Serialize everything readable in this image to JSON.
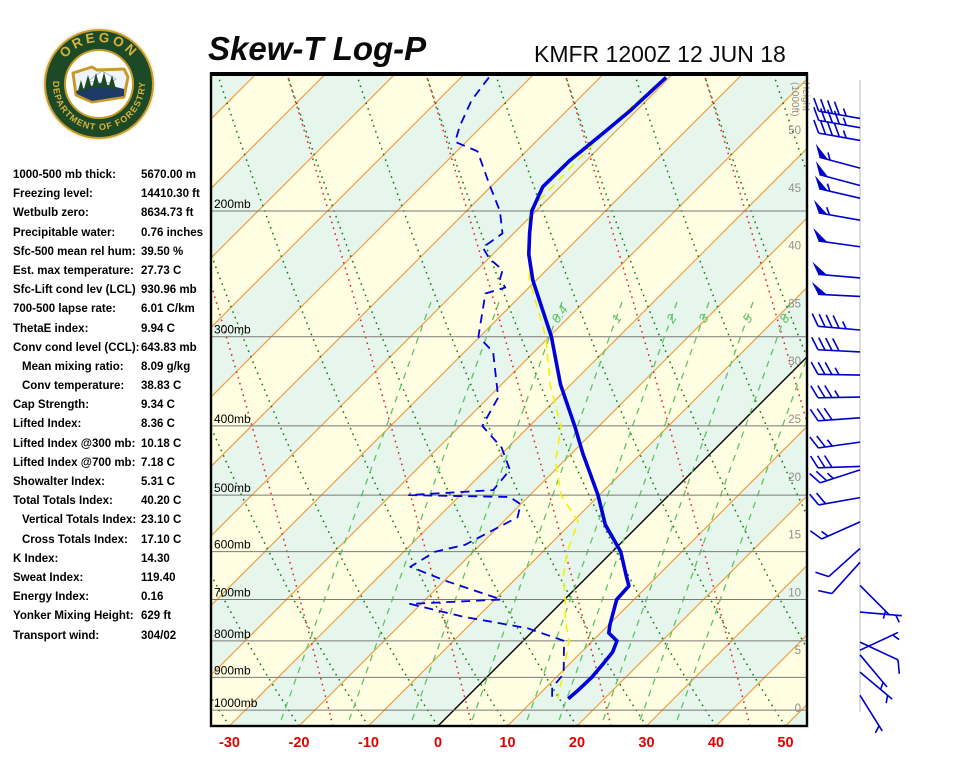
{
  "header": {
    "title": "Skew-T Log-P",
    "station_line": "KMFR 1200Z 12 JUN 18",
    "logo": {
      "top_text": "OREGON",
      "bottom_text": "DEPARTMENT OF FORESTRY"
    }
  },
  "stats": [
    {
      "label": "1000-500 mb thick:",
      "value": "5670.00 m",
      "indent": false
    },
    {
      "label": "Freezing level:",
      "value": "14410.30 ft",
      "indent": false
    },
    {
      "label": "Wetbulb zero:",
      "value": "8634.73 ft",
      "indent": false
    },
    {
      "label": "Precipitable water:",
      "value": "0.76 inches",
      "indent": false
    },
    {
      "label": "Sfc-500 mean rel hum:",
      "value": "39.50 %",
      "indent": false
    },
    {
      "label": "Est. max temperature:",
      "value": "27.73 C",
      "indent": false
    },
    {
      "label": "Sfc-Lift cond lev (LCL)",
      "value": "930.96 mb",
      "indent": false
    },
    {
      "label": "700-500 lapse rate:",
      "value": "6.01 C/km",
      "indent": false
    },
    {
      "label": "ThetaE index:",
      "value": "9.94 C",
      "indent": false
    },
    {
      "label": "Conv cond level (CCL):",
      "value": "643.83 mb",
      "indent": false
    },
    {
      "label": "Mean mixing ratio:",
      "value": "8.09 g/kg",
      "indent": true
    },
    {
      "label": "Conv temperature:",
      "value": "38.83 C",
      "indent": true
    },
    {
      "label": "Cap Strength:",
      "value": "9.34 C",
      "indent": false
    },
    {
      "label": "Lifted Index:",
      "value": "8.36 C",
      "indent": false
    },
    {
      "label": "Lifted Index @300 mb:",
      "value": "10.18 C",
      "indent": false
    },
    {
      "label": "Lifted Index @700 mb:",
      "value": "7.18 C",
      "indent": false
    },
    {
      "label": "Showalter Index:",
      "value": "5.31 C",
      "indent": false
    },
    {
      "label": "Total Totals Index:",
      "value": "40.20 C",
      "indent": false
    },
    {
      "label": "Vertical Totals Index:",
      "value": "23.10 C",
      "indent": true
    },
    {
      "label": "Cross Totals Index:",
      "value": "17.10 C",
      "indent": true
    },
    {
      "label": "K Index:",
      "value": "14.30",
      "indent": false
    },
    {
      "label": "Sweat Index:",
      "value": "119.40",
      "indent": false
    },
    {
      "label": "Energy Index:",
      "value": "0.16",
      "indent": false
    },
    {
      "label": "Yonker Mixing Height:",
      "value": "629 ft",
      "indent": false
    },
    {
      "label": "Transport wind:",
      "value": "304/02",
      "indent": false
    }
  ],
  "colors": {
    "band_yellow": "#fffee2",
    "band_green": "#e6f6ec",
    "isotherm_orange": "#f0a044",
    "zero_isotherm": "#000000",
    "dry_adiabat_green": "#0b7d0b",
    "moist_adiabat_red": "#e02020",
    "mixing_ratio_green": "#5ec464",
    "pressure_line_gray": "#7a7a7a",
    "height_label_gray": "#8f8f8f",
    "trace_blue": "#0000dd",
    "wetbulb_yellow": "#f2f200",
    "axis_label_red": "#e60000",
    "barb_blue": "#0000cc",
    "frame_black": "#000000"
  },
  "chart_data": {
    "type": "line",
    "subtype": "skew-t-log-p-sounding",
    "title": "Skew-T Log-P",
    "station": "KMFR",
    "valid_time": "1200Z 12 JUN 18",
    "pressure_axis": {
      "unit": "mb",
      "labels": [
        "200mb",
        "300mb",
        "400mb",
        "500mb",
        "600mb",
        "700mb",
        "800mb",
        "900mb",
        "1000mb"
      ],
      "values": [
        200,
        300,
        400,
        500,
        600,
        700,
        800,
        900,
        1000
      ],
      "scale": "log",
      "top_mb": 130,
      "bottom_mb": 1055
    },
    "temp_axis": {
      "unit": "C",
      "ticks": [
        -30,
        -20,
        -10,
        0,
        10,
        20,
        30,
        40,
        50
      ],
      "skew_deg": 45
    },
    "height_axis": {
      "title": "Height (1000ft)",
      "ticks": [
        50,
        45,
        40,
        35,
        30,
        25,
        20,
        15,
        10,
        5,
        0
      ]
    },
    "mixing_ratio_labels": [
      "0.4",
      "1",
      "2",
      "3",
      "5",
      "8"
    ],
    "series": [
      {
        "name": "temperature",
        "style": "solid",
        "color": "#0000dd",
        "points": [
          [
            130,
            -60.5
          ],
          [
            145,
            -60.9
          ],
          [
            155,
            -61.5
          ],
          [
            170,
            -62.4
          ],
          [
            185,
            -62.5
          ],
          [
            200,
            -60.6
          ],
          [
            215,
            -57.7
          ],
          [
            230,
            -54.8
          ],
          [
            250,
            -50.5
          ],
          [
            300,
            -39.7
          ],
          [
            350,
            -31.5
          ],
          [
            400,
            -23.5
          ],
          [
            437,
            -18.4
          ],
          [
            500,
            -10.2
          ],
          [
            550,
            -4.9
          ],
          [
            600,
            1.2
          ],
          [
            650,
            5.6
          ],
          [
            670,
            7.3
          ],
          [
            700,
            7.5
          ],
          [
            760,
            10.2
          ],
          [
            780,
            11.2
          ],
          [
            800,
            13.5
          ],
          [
            830,
            14.5
          ],
          [
            860,
            14.8
          ],
          [
            900,
            15.1
          ],
          [
            940,
            15.0
          ],
          [
            964,
            14.8
          ]
        ]
      },
      {
        "name": "dewpoint",
        "style": "dashed",
        "color": "#0000dd",
        "points": [
          [
            130,
            -86.0
          ],
          [
            140,
            -85.2
          ],
          [
            152,
            -83.2
          ],
          [
            160,
            -81.6
          ],
          [
            165,
            -77.0
          ],
          [
            184,
            -70.4
          ],
          [
            200,
            -65.2
          ],
          [
            215,
            -61.6
          ],
          [
            225,
            -62.4
          ],
          [
            233,
            -59.9
          ],
          [
            242,
            -56.3
          ],
          [
            249,
            -55.4
          ],
          [
            256,
            -53.4
          ],
          [
            261,
            -55.4
          ],
          [
            300,
            -50.2
          ],
          [
            315,
            -45.9
          ],
          [
            365,
            -38.6
          ],
          [
            400,
            -36.8
          ],
          [
            429,
            -30.9
          ],
          [
            461,
            -26.5
          ],
          [
            492,
            -26.0
          ],
          [
            500,
            -37.4
          ],
          [
            503,
            -22.6
          ],
          [
            515,
            -20.0
          ],
          [
            537,
            -18.6
          ],
          [
            587,
            -22.2
          ],
          [
            600,
            -25.5
          ],
          [
            630,
            -26.9
          ],
          [
            660,
            -19.6
          ],
          [
            700,
            -9.1
          ],
          [
            710,
            -21.6
          ],
          [
            740,
            -12.1
          ],
          [
            768,
            -1.2
          ],
          [
            800,
            5.9
          ],
          [
            845,
            8.3
          ],
          [
            890,
            10.6
          ],
          [
            930,
            10.9
          ],
          [
            962,
            12.4
          ]
        ]
      },
      {
        "name": "wetbulb",
        "style": "dashed",
        "color": "#f2f200",
        "points": [
          [
            130,
            -60.7
          ],
          [
            150,
            -61.5
          ],
          [
            200,
            -61.0
          ],
          [
            250,
            -51.0
          ],
          [
            300,
            -40.5
          ],
          [
            350,
            -33.0
          ],
          [
            400,
            -25.5
          ],
          [
            450,
            -21.0
          ],
          [
            500,
            -15.5
          ],
          [
            545,
            -9.2
          ],
          [
            600,
            -6.5
          ],
          [
            650,
            -3.5
          ],
          [
            700,
            0.1
          ],
          [
            750,
            3.2
          ],
          [
            800,
            6.6
          ],
          [
            850,
            8.8
          ],
          [
            900,
            10.9
          ],
          [
            962,
            13.2
          ]
        ]
      }
    ],
    "wind_barbs": [
      {
        "alt_kft": 51.0,
        "dir_deg": 280,
        "speed_kt": 45
      },
      {
        "alt_kft": 50.2,
        "dir_deg": 280,
        "speed_kt": 45
      },
      {
        "alt_kft": 49.1,
        "dir_deg": 280,
        "speed_kt": 45
      },
      {
        "alt_kft": 46.7,
        "dir_deg": 285,
        "speed_kt": 55
      },
      {
        "alt_kft": 45.2,
        "dir_deg": 285,
        "speed_kt": 50
      },
      {
        "alt_kft": 44.1,
        "dir_deg": 283,
        "speed_kt": 55
      },
      {
        "alt_kft": 42.2,
        "dir_deg": 280,
        "speed_kt": 55
      },
      {
        "alt_kft": 39.9,
        "dir_deg": 278,
        "speed_kt": 50
      },
      {
        "alt_kft": 37.2,
        "dir_deg": 275,
        "speed_kt": 50
      },
      {
        "alt_kft": 35.6,
        "dir_deg": 273,
        "speed_kt": 50
      },
      {
        "alt_kft": 32.7,
        "dir_deg": 275,
        "speed_kt": 45
      },
      {
        "alt_kft": 30.8,
        "dir_deg": 273,
        "speed_kt": 40
      },
      {
        "alt_kft": 28.8,
        "dir_deg": 271,
        "speed_kt": 35
      },
      {
        "alt_kft": 26.9,
        "dir_deg": 269,
        "speed_kt": 35
      },
      {
        "alt_kft": 25.1,
        "dir_deg": 266,
        "speed_kt": 30
      },
      {
        "alt_kft": 23.0,
        "dir_deg": 262,
        "speed_kt": 25
      },
      {
        "alt_kft": 20.9,
        "dir_deg": 268,
        "speed_kt": 30
      },
      {
        "alt_kft": 20.6,
        "dir_deg": 252,
        "speed_kt": 25
      },
      {
        "alt_kft": 18.2,
        "dir_deg": 260,
        "speed_kt": 20
      },
      {
        "alt_kft": 16.1,
        "dir_deg": 246,
        "speed_kt": 15
      },
      {
        "alt_kft": 13.8,
        "dir_deg": 228,
        "speed_kt": 12
      },
      {
        "alt_kft": 12.6,
        "dir_deg": 222,
        "speed_kt": 10
      },
      {
        "alt_kft": 10.6,
        "dir_deg": 135,
        "speed_kt": 5
      },
      {
        "alt_kft": 8.3,
        "dir_deg": 95,
        "speed_kt": 7
      },
      {
        "alt_kft": 5.7,
        "dir_deg": 115,
        "speed_kt": 8
      },
      {
        "alt_kft": 5.0,
        "dir_deg": 65,
        "speed_kt": 5
      },
      {
        "alt_kft": 4.6,
        "dir_deg": 140,
        "speed_kt": 7
      },
      {
        "alt_kft": 3.1,
        "dir_deg": 130,
        "speed_kt": 5
      },
      {
        "alt_kft": 1.1,
        "dir_deg": 148,
        "speed_kt": 5
      }
    ],
    "layout": {
      "grid": "skewed 45-deg isotherms, log-pressure horizontals",
      "legend": "none"
    }
  }
}
